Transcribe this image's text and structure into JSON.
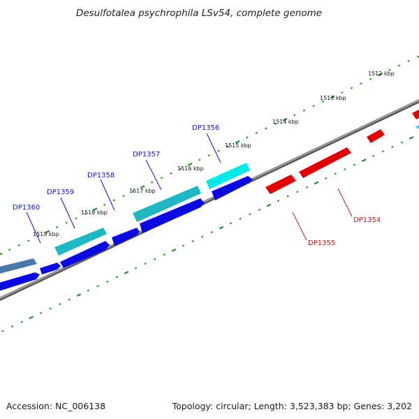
{
  "title": "Desulfotalea psychrophila LSv54, complete genome",
  "footer": {
    "accession": "Accession: NC_006138",
    "summary": "Topology: circular; Length: 3,523,383 bp; Genes: 3,202"
  },
  "colors": {
    "backbone": "#808080",
    "tick": "#2a8a2a",
    "forward_label": "#1010cc",
    "reverse_label": "#cc1010",
    "forward_cds": "#0a0ae0",
    "forward_gene_cyan": "#00e8e8",
    "forward_gene_teal": "#20b8c0",
    "forward_gene_steel": "#4a78a8",
    "reverse_gene": "#e00000"
  },
  "scale": {
    "unit": "kbp",
    "tick_labels": [
      "1512 kbp",
      "1513 kbp",
      "1514 kbp",
      "1515 kbp",
      "1516 kbp",
      "1517 kbp",
      "1518 kbp",
      "1519 kbp"
    ]
  },
  "gene_labels": {
    "forward": [
      "DP1356",
      "DP1357",
      "DP1358",
      "DP1359",
      "DP1360"
    ],
    "reverse": [
      "DP1354",
      "DP1355"
    ]
  }
}
